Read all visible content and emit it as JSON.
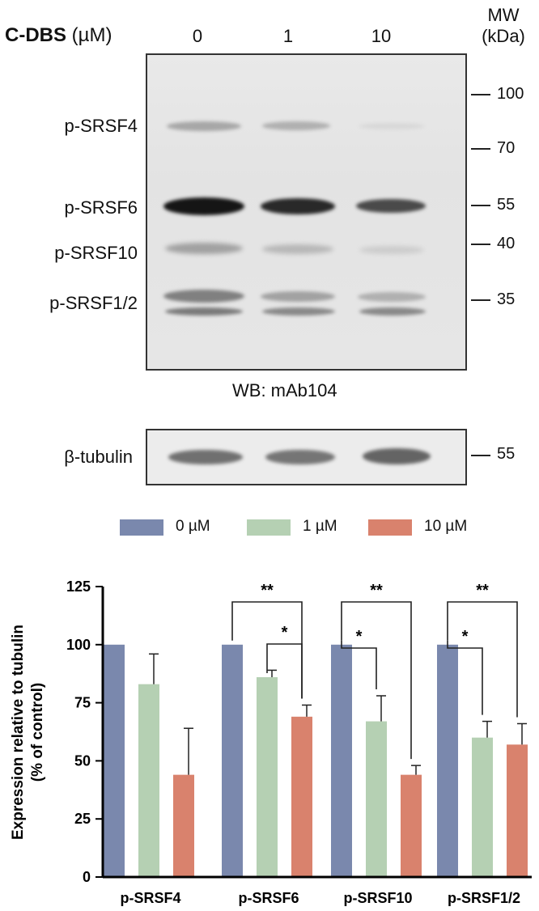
{
  "blot": {
    "treatment_label": "C-DBS",
    "treatment_unit": "(µM)",
    "lanes": [
      "0",
      "1",
      "10"
    ],
    "mw_title_line1": "MW",
    "mw_title_line2": "(kDa)",
    "band_labels": [
      "p-SRSF4",
      "p-SRSF6",
      "p-SRSF10",
      "p-SRSF1/2"
    ],
    "mw_markers": [
      "100",
      "70",
      "55",
      "40",
      "35"
    ],
    "wb_label": "WB: mAb104",
    "loading_label": "β-tubulin",
    "loading_mw": "55"
  },
  "colors": {
    "series_0": "#7a88ad",
    "series_1": "#b5d0b3",
    "series_10": "#d9826d"
  },
  "chart_data": {
    "type": "bar",
    "ylabel_line1": "Expression relative to tubulin",
    "ylabel_line2": "(% of control)",
    "categories": [
      "p-SRSF4",
      "p-SRSF6",
      "p-SRSF10",
      "p-SRSF1/2"
    ],
    "ylim": [
      0,
      125
    ],
    "yticks": [
      "0",
      "25",
      "50",
      "75",
      "100",
      "125"
    ],
    "legend_position": "top",
    "series": [
      {
        "name": "0 µM",
        "values": [
          100,
          100,
          100,
          100
        ],
        "errors": [
          0,
          0,
          0,
          0
        ]
      },
      {
        "name": "1 µM",
        "values": [
          83,
          86,
          67,
          60
        ],
        "errors": [
          13,
          3,
          11,
          7
        ]
      },
      {
        "name": "10 µM",
        "values": [
          44,
          69,
          44,
          57
        ],
        "errors": [
          20,
          5,
          4,
          9
        ]
      }
    ],
    "significance": [
      {
        "category": "p-SRSF6",
        "from": "0 µM",
        "to": "10 µM",
        "label": "**"
      },
      {
        "category": "p-SRSF6",
        "from": "1 µM",
        "to": "10 µM",
        "label": "*"
      },
      {
        "category": "p-SRSF10",
        "from": "0 µM",
        "to": "10 µM",
        "label": "**"
      },
      {
        "category": "p-SRSF10",
        "from": "0 µM",
        "to": "1 µM",
        "label": "*"
      },
      {
        "category": "p-SRSF1/2",
        "from": "0 µM",
        "to": "10 µM",
        "label": "**"
      },
      {
        "category": "p-SRSF1/2",
        "from": "0 µM",
        "to": "1 µM",
        "label": "*"
      }
    ]
  }
}
